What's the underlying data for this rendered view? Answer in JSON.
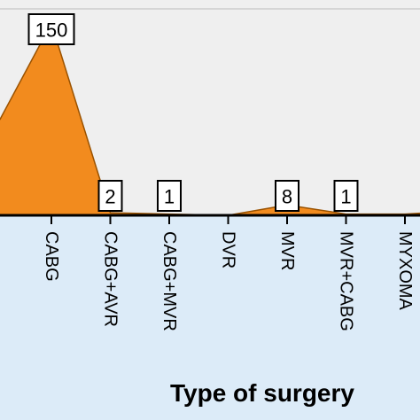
{
  "chart_data": {
    "type": "area",
    "title": "",
    "xlabel": "Type of surgery",
    "ylabel": "",
    "categories": [
      "CABG",
      "CABG+AVR",
      "CABG+MVR",
      "DVR",
      "MVR",
      "MVR+CABG",
      "MYXOMA"
    ],
    "series": [
      {
        "values": [
          150,
          2,
          1,
          0,
          8,
          1,
          1
        ]
      }
    ],
    "data_labels": [
      "150",
      "2",
      "1",
      "",
      "8",
      "1",
      ""
    ],
    "ylim": [
      0,
      160
    ],
    "grid": false,
    "legend": "none"
  },
  "colors": {
    "plot_background": "#efefef",
    "axis_background": "#dcebf8",
    "area_fill": "#f28b1e",
    "area_stroke": "#9a5200",
    "axis_line": "#000000",
    "label_box_fill": "#ffffff",
    "label_box_stroke": "#000000"
  }
}
